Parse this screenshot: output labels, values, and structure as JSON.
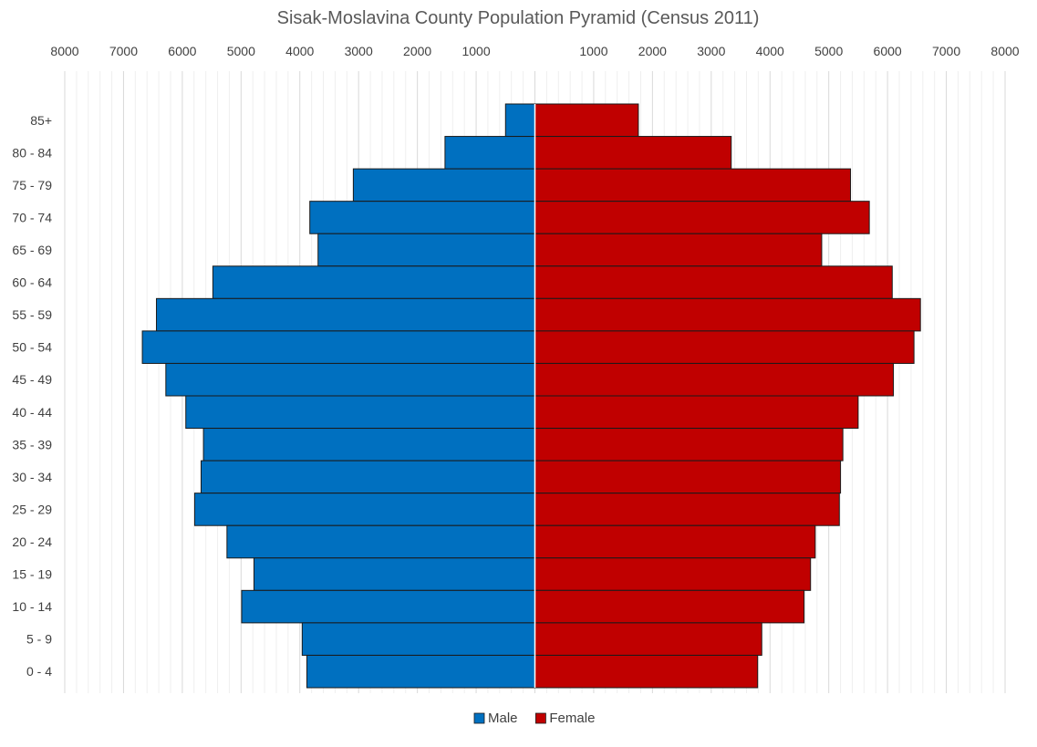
{
  "chart_data": {
    "type": "bar",
    "orientation": "horizontal",
    "layout": "population-pyramid",
    "title": "Sisak-Moslavina County Population Pyramid (Census 2011)",
    "xlabel": "",
    "ylabel": "",
    "xlim": [
      -8000,
      8000
    ],
    "x_axis_position": "top",
    "x_ticks": [
      -8000,
      -7000,
      -6000,
      -5000,
      -4000,
      -3000,
      -2000,
      -1000,
      1000,
      2000,
      3000,
      4000,
      5000,
      6000,
      7000,
      8000
    ],
    "x_tick_labels": [
      "8000",
      "7000",
      "6000",
      "5000",
      "4000",
      "3000",
      "2000",
      "1000",
      "1000",
      "2000",
      "3000",
      "4000",
      "5000",
      "6000",
      "7000",
      "8000"
    ],
    "grid": true,
    "legend": "bottom",
    "categories": [
      "85+",
      "80 - 84",
      "75 - 79",
      "70 - 74",
      "65 - 69",
      "60 - 64",
      "55 - 59",
      "50 - 54",
      "45 - 49",
      "40 - 44",
      "35 - 39",
      "30 - 34",
      "25 - 29",
      "20 - 24",
      "15 - 19",
      "10 - 14",
      "5 - 9",
      "0 - 4"
    ],
    "series": [
      {
        "name": "Male",
        "color": "#0070C0",
        "side": "left",
        "values": [
          500,
          1530,
          3090,
          3830,
          3690,
          5480,
          6440,
          6680,
          6280,
          5940,
          5640,
          5680,
          5790,
          5240,
          4780,
          4990,
          3960,
          3880
        ]
      },
      {
        "name": "Female",
        "color": "#C00000",
        "side": "right",
        "values": [
          1760,
          3340,
          5370,
          5690,
          4880,
          6080,
          6560,
          6450,
          6100,
          5500,
          5240,
          5200,
          5180,
          4770,
          4690,
          4580,
          3860,
          3790
        ]
      }
    ]
  }
}
